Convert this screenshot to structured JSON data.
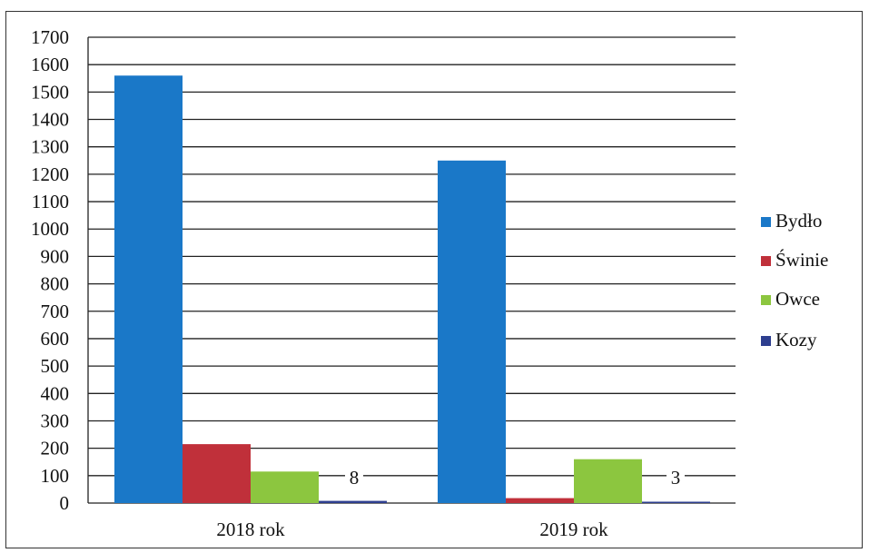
{
  "chart_data": {
    "type": "bar",
    "categories": [
      "2018 rok",
      "2019 rok"
    ],
    "series": [
      {
        "name": "Bydło",
        "color": "#1a78c8",
        "values": [
          1560,
          1250
        ]
      },
      {
        "name": "Świnie",
        "color": "#c0303a",
        "values": [
          215,
          18
        ]
      },
      {
        "name": "Owce",
        "color": "#8cc63f",
        "values": [
          115,
          160
        ]
      },
      {
        "name": "Kozy",
        "color": "#2e3f8f",
        "values": [
          8,
          3
        ]
      }
    ],
    "data_labels": [
      {
        "series": "Kozy",
        "category": "2018 rok",
        "text": "8"
      },
      {
        "series": "Kozy",
        "category": "2019 rok",
        "text": "3"
      }
    ],
    "y_ticks": [
      "0",
      "100",
      "200",
      "300",
      "400",
      "500",
      "600",
      "700",
      "800",
      "900",
      "1000",
      "1100",
      "1200",
      "1300",
      "1400",
      "1500",
      "1600",
      "1700"
    ],
    "ylim": [
      0,
      1700
    ],
    "ystep": 100,
    "grid": true,
    "legend_position": "right",
    "title": "",
    "xlabel": "",
    "ylabel": ""
  }
}
